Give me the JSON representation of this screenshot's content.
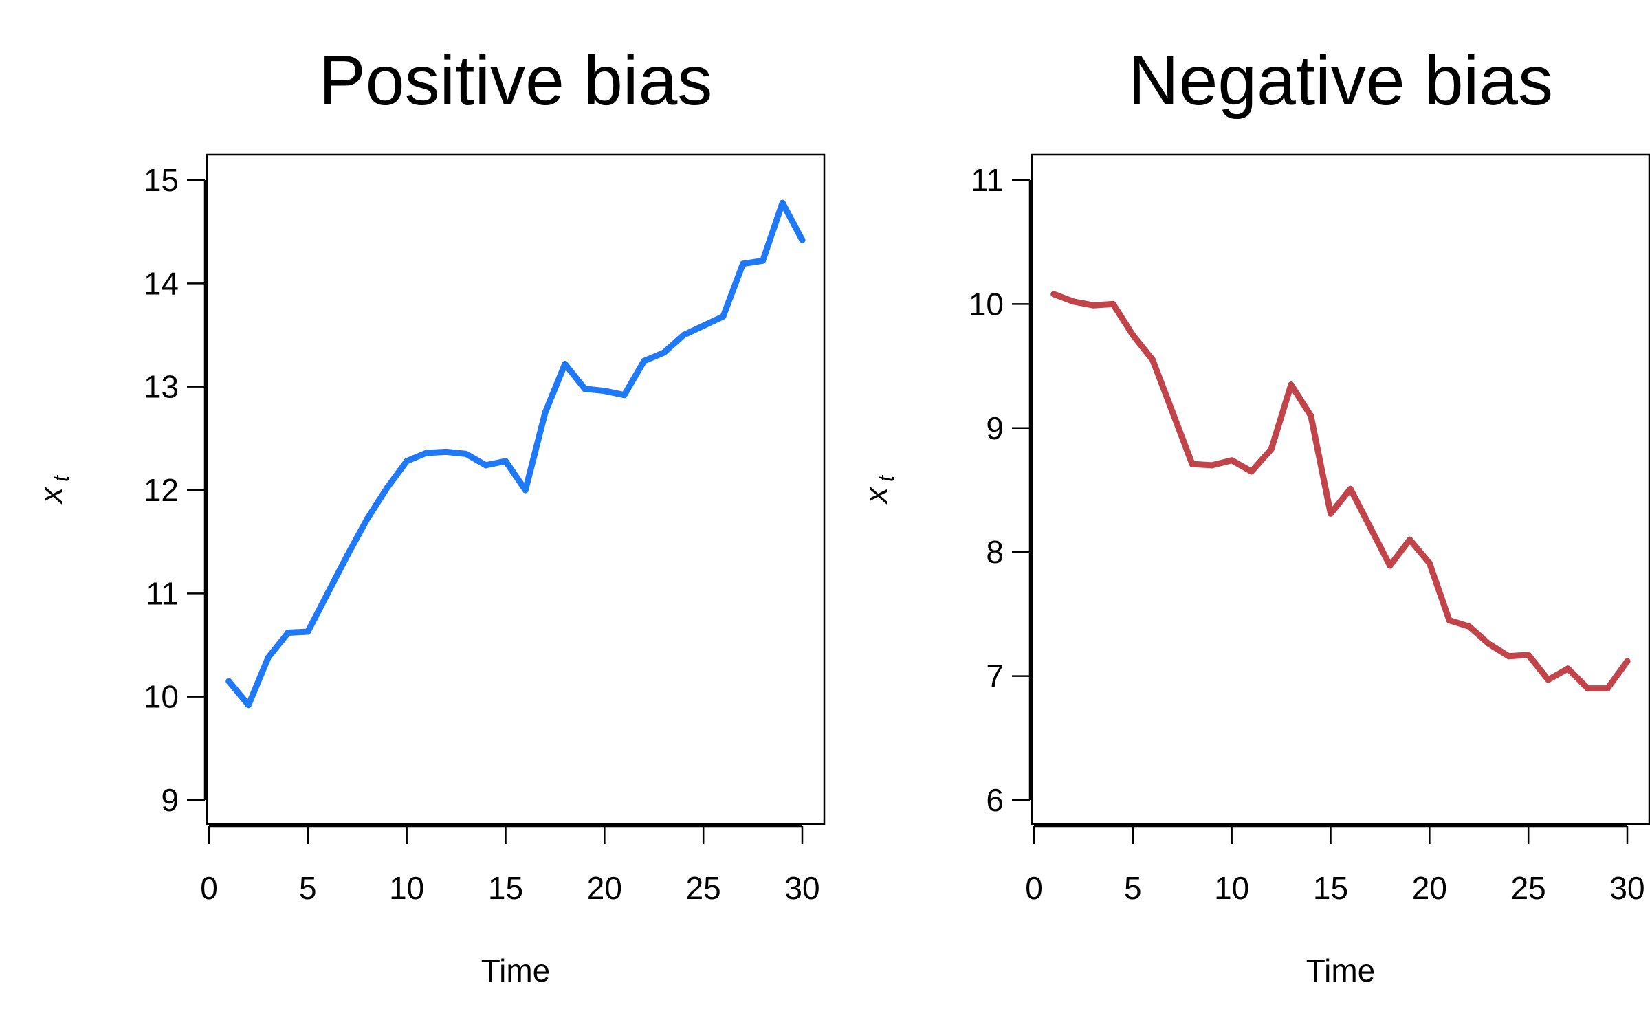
{
  "chart_data": [
    {
      "type": "line",
      "title": "Positive bias",
      "xlabel": "Time",
      "ylabel": "x",
      "ylabel_subscript": "t",
      "xlim": [
        0,
        30
      ],
      "ylim": [
        9,
        15
      ],
      "x_ticks": [
        0,
        5,
        10,
        15,
        20,
        25,
        30
      ],
      "y_ticks": [
        9,
        10,
        11,
        12,
        13,
        14,
        15
      ],
      "grid": false,
      "series": [
        {
          "color": "#1f78f5",
          "x": [
            1,
            2,
            3,
            4,
            5,
            6,
            7,
            8,
            9,
            10,
            11,
            12,
            13,
            14,
            15,
            16,
            17,
            18,
            19,
            20,
            21,
            22,
            23,
            24,
            25,
            26,
            27,
            28,
            29,
            30
          ],
          "values": [
            10.15,
            9.92,
            10.38,
            10.62,
            10.63,
            11.0,
            11.37,
            11.72,
            12.02,
            12.28,
            12.36,
            12.37,
            12.35,
            12.24,
            12.28,
            12.0,
            12.75,
            13.22,
            12.98,
            12.96,
            12.92,
            13.25,
            13.33,
            13.5,
            13.59,
            13.68,
            14.19,
            14.22,
            14.78,
            14.42
          ]
        }
      ]
    },
    {
      "type": "line",
      "title": "Negative bias",
      "xlabel": "Time",
      "ylabel": "x",
      "ylabel_subscript": "t",
      "xlim": [
        0,
        30
      ],
      "ylim": [
        6,
        11
      ],
      "x_ticks": [
        0,
        5,
        10,
        15,
        20,
        25,
        30
      ],
      "y_ticks": [
        6,
        7,
        8,
        9,
        10,
        11
      ],
      "grid": false,
      "series": [
        {
          "color": "#c0444a",
          "x": [
            1,
            2,
            3,
            4,
            5,
            6,
            7,
            8,
            9,
            10,
            11,
            12,
            13,
            14,
            15,
            16,
            17,
            18,
            19,
            20,
            21,
            22,
            23,
            24,
            25,
            26,
            27,
            28,
            29,
            30
          ],
          "values": [
            10.08,
            10.02,
            9.99,
            10.0,
            9.75,
            9.55,
            9.13,
            8.71,
            8.7,
            8.74,
            8.65,
            8.83,
            9.35,
            9.1,
            8.31,
            8.51,
            8.2,
            7.89,
            8.1,
            7.91,
            7.45,
            7.4,
            7.26,
            7.16,
            7.17,
            6.97,
            7.06,
            6.9,
            6.9,
            7.12
          ]
        }
      ]
    }
  ]
}
